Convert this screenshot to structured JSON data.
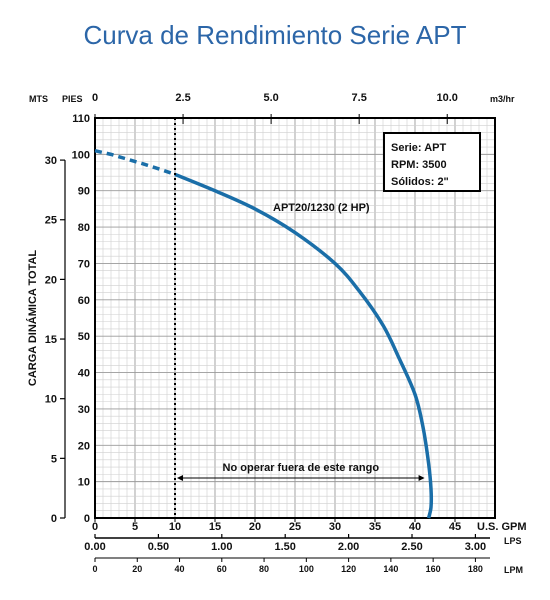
{
  "chart_data": {
    "type": "line",
    "title": "Curva de Rendimiento Serie APT",
    "ylabel": "CARGA DINÁMICA TOTAL",
    "y_units": {
      "left": "MTS",
      "right": "PIES"
    },
    "x_units": {
      "gpm": "U.S. GPM",
      "lps": "LPS",
      "lpm": "LPM",
      "m3hr": "m3/hr"
    },
    "xlim": [
      0,
      50
    ],
    "ylim": [
      0,
      110
    ],
    "gpm_ticks": [
      "0",
      "5",
      "10",
      "15",
      "20",
      "25",
      "30",
      "35",
      "40",
      "45"
    ],
    "feet_ticks": [
      "0",
      "10",
      "20",
      "30",
      "40",
      "50",
      "60",
      "70",
      "80",
      "90",
      "100",
      "110"
    ],
    "meter_ticks": [
      "0",
      "5",
      "10",
      "15",
      "20",
      "25",
      "30"
    ],
    "m3hr_ticks": [
      "0",
      "2.5",
      "5.0",
      "7.5",
      "10.0"
    ],
    "lps_ticks": [
      "0.00",
      "0.50",
      "1.00",
      "1.50",
      "2.00",
      "2.50",
      "3.00"
    ],
    "lpm_ticks": [
      "0",
      "20",
      "40",
      "60",
      "80",
      "100",
      "120",
      "140",
      "160",
      "180"
    ],
    "series": [
      {
        "name": "APT20/1230 (2 HP)",
        "color": "#1a6ea8",
        "dashed_x": [
          0,
          2,
          4,
          6,
          8,
          10
        ],
        "dashed_y": [
          101,
          100,
          98.7,
          97.4,
          96,
          94.5
        ],
        "x": [
          10,
          15,
          20,
          25,
          30,
          33,
          36,
          38,
          40,
          41,
          41.7,
          42,
          42,
          41.7
        ],
        "y": [
          94.5,
          90,
          85,
          78.5,
          70,
          62.5,
          53,
          44,
          34,
          25,
          15,
          8,
          3,
          0
        ]
      }
    ],
    "info_box": [
      "Serie: APT",
      "RPM: 3500",
      "Sólidos: 2\""
    ],
    "range_marker": {
      "x": 10,
      "label": "No operar fuera de este rango"
    },
    "grid": true,
    "legend": "top-right"
  }
}
